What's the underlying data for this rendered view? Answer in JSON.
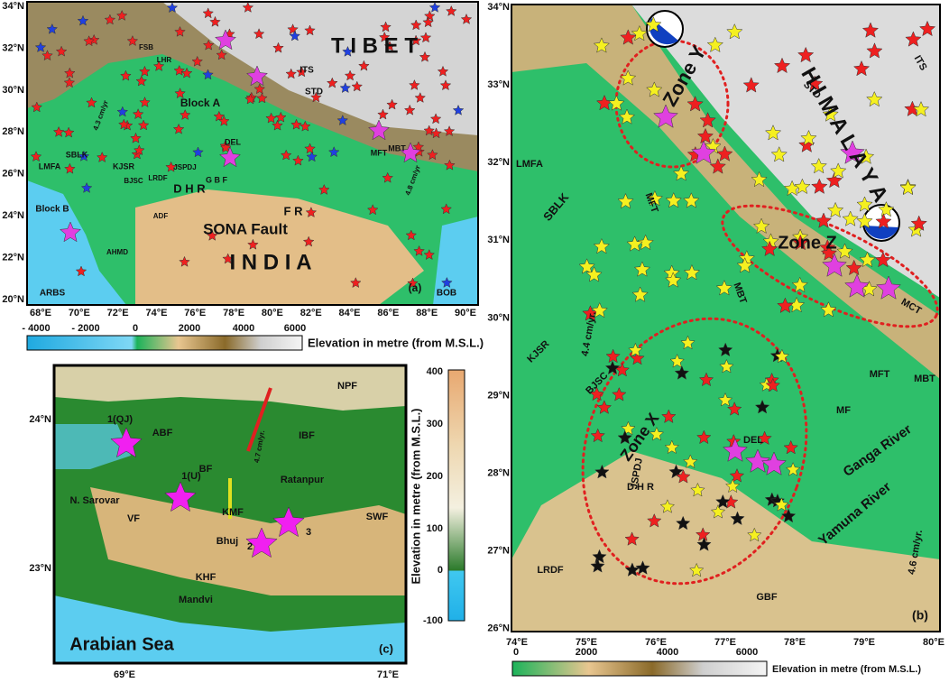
{
  "panel_a": {
    "xticks": [
      "68°E",
      "70°E",
      "72°E",
      "74°E",
      "76°E",
      "78°E",
      "80°E",
      "82°E",
      "84°E",
      "86°E",
      "88°E",
      "90°E"
    ],
    "yticks": [
      "34°N",
      "32°N",
      "30°N",
      "28°N",
      "26°N",
      "24°N",
      "22°N",
      "20°N"
    ],
    "places": [
      "T I B E T",
      "ITS",
      "STD",
      "MBT",
      "MFT",
      "Block A",
      "Block B",
      "FSB",
      "LHR",
      "LMFA",
      "SBLK",
      "KJSR",
      "BJSC",
      "LRDF",
      "JSPDJ",
      "D H R",
      "G B F",
      "F R",
      "SONA Fault",
      "I N D I A",
      "ADF",
      "AHMD",
      "ARBS",
      "BOB",
      "4.3 cm/yr",
      "4.8 cm/yr",
      "DEL",
      "(a)"
    ],
    "colorbar_ticks": [
      "- 4000",
      "- 2000",
      "0",
      "2000",
      "4000",
      "6000"
    ],
    "colorbar_label": "Elevation in metre (from M.S.L.)"
  },
  "panel_b": {
    "xticks": [
      "74°E",
      "75°E",
      "76°E",
      "77°E",
      "78°E",
      "79°E",
      "80°E"
    ],
    "yticks": [
      "34°N",
      "33°N",
      "32°N",
      "31°N",
      "30°N",
      "29°N",
      "28°N",
      "27°N",
      "26°N"
    ],
    "places": [
      "Zone Y",
      "Zone Z",
      "Zone X",
      "H I M A L A Y A",
      "ITS",
      "STD",
      "LMFA",
      "SBLK",
      "MFT",
      "MBT",
      "MCT",
      "MFT",
      "MBT",
      "KJSR",
      "BJSC",
      "JSPDJ",
      "D H R",
      "DEL",
      "MF",
      "Ganga River",
      "Yamuna River",
      "LRDF",
      "GBF",
      "4.4 cm/yr.",
      "4.6 cm/yr.",
      "(b)"
    ],
    "colorbar_ticks": [
      "0",
      "2000",
      "4000",
      "6000"
    ],
    "colorbar_label": "Elevation in metre (from M.S.L.)"
  },
  "panel_c": {
    "xticks": [
      "69°E",
      "71°E"
    ],
    "yticks": [
      "24°N",
      "23°N"
    ],
    "places": [
      "NPF",
      "ABF",
      "IBF",
      "BF",
      "KMF",
      "VF",
      "SWF",
      "KHF",
      "1(QJ)",
      "1(U)",
      "2",
      "3",
      "N. Sarovar",
      "Ratanpur",
      "Bhuj",
      "Mandvi",
      "Arabian Sea",
      "4.7 cm/yr.",
      "(c)"
    ],
    "colorbar_ticks": [
      "400",
      "300",
      "200",
      "100",
      "0",
      "-100"
    ],
    "colorbar_label": "Elevation in metre (from M.S.L.)"
  }
}
